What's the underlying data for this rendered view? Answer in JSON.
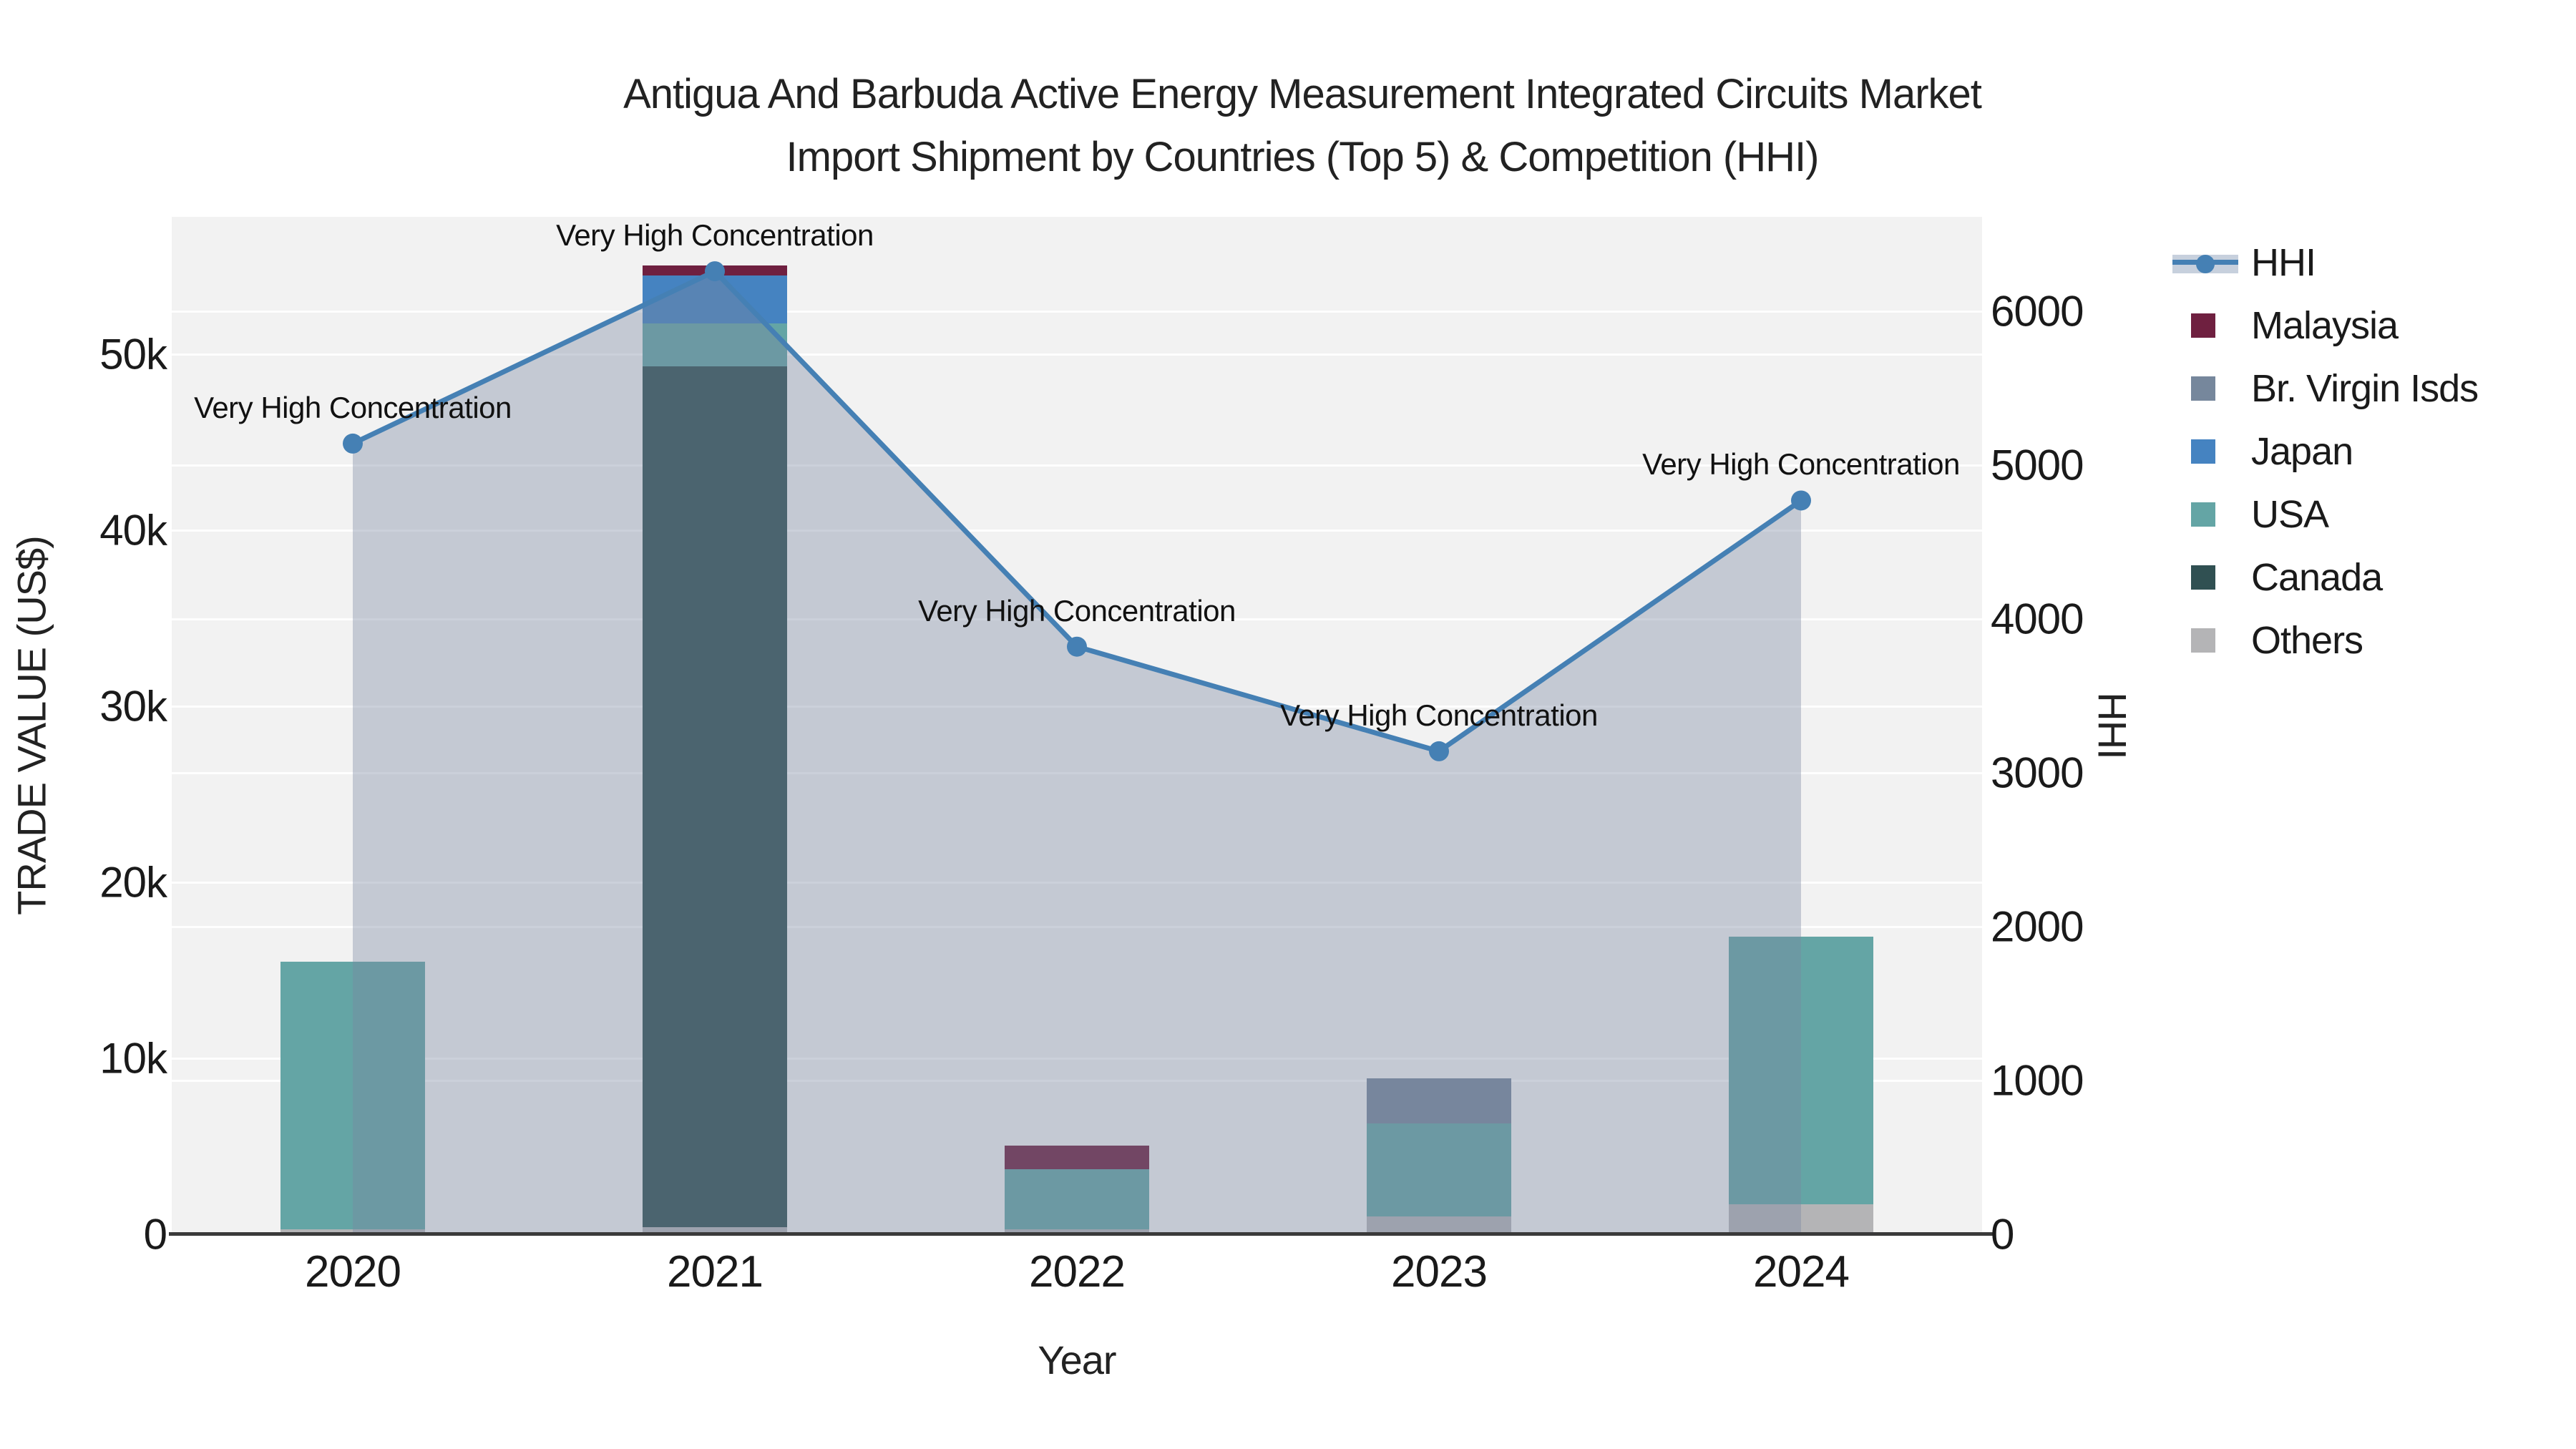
{
  "title": {
    "line1": "Antigua And Barbuda Active Energy Measurement Integrated Circuits Market",
    "line2": "Import Shipment by Countries (Top 5) & Competition (HHI)"
  },
  "chart_data": {
    "type": "bar+line",
    "categories": [
      "2020",
      "2021",
      "2022",
      "2023",
      "2024"
    ],
    "bar_stack_bottom_to_top": [
      "Others",
      "Canada",
      "USA",
      "Japan",
      "Br. Virgin Isds",
      "Malaysia"
    ],
    "series": [
      {
        "name": "Others",
        "color": "#b4b4b6",
        "values": [
          300,
          400,
          300,
          1000,
          1700
        ]
      },
      {
        "name": "Canada",
        "color": "#305052",
        "values": [
          0,
          48900,
          0,
          0,
          0
        ]
      },
      {
        "name": "USA",
        "color": "#64a5a5",
        "values": [
          15200,
          2450,
          3400,
          5300,
          15200
        ]
      },
      {
        "name": "Japan",
        "color": "#4583c1",
        "values": [
          0,
          2700,
          0,
          0,
          0
        ]
      },
      {
        "name": "Br. Virgin Isds",
        "color": "#76879c",
        "values": [
          0,
          0,
          0,
          2550,
          0
        ]
      },
      {
        "name": "Malaysia",
        "color": "#6f2040",
        "values": [
          0,
          570,
          1350,
          0,
          0
        ]
      }
    ],
    "line_series": {
      "name": "HHI",
      "color": "#4580b4",
      "area_fill": "rgba(120,135,160,0.38)",
      "values": [
        5140,
        6260,
        3820,
        3140,
        4770
      ]
    },
    "annotations": {
      "text": "Very High Concentration",
      "applies_to_years": [
        "2020",
        "2021",
        "2022",
        "2023",
        "2024"
      ]
    },
    "xlabel": "Year",
    "y_left": {
      "title": "TRADE VALUE (US$)",
      "max": 57800,
      "ticks": [
        {
          "value": 0,
          "label": "0"
        },
        {
          "value": 10000,
          "label": "10k"
        },
        {
          "value": 20000,
          "label": "20k"
        },
        {
          "value": 30000,
          "label": "30k"
        },
        {
          "value": 40000,
          "label": "40k"
        },
        {
          "value": 50000,
          "label": "50k"
        }
      ]
    },
    "y_right": {
      "title": "HHI",
      "max": 6614,
      "ticks": [
        {
          "value": 0,
          "label": "0"
        },
        {
          "value": 1000,
          "label": "1000"
        },
        {
          "value": 2000,
          "label": "2000"
        },
        {
          "value": 3000,
          "label": "3000"
        },
        {
          "value": 4000,
          "label": "4000"
        },
        {
          "value": 5000,
          "label": "5000"
        },
        {
          "value": 6000,
          "label": "6000"
        }
      ]
    },
    "legend": [
      {
        "label": "HHI",
        "type": "line",
        "color": "#4580b4"
      },
      {
        "label": "Malaysia",
        "type": "swatch",
        "color": "#6f2040"
      },
      {
        "label": "Br. Virgin Isds",
        "type": "swatch",
        "color": "#76879c"
      },
      {
        "label": "Japan",
        "type": "swatch",
        "color": "#4583c1"
      },
      {
        "label": "USA",
        "type": "swatch",
        "color": "#64a5a5"
      },
      {
        "label": "Canada",
        "type": "swatch",
        "color": "#305052"
      },
      {
        "label": "Others",
        "type": "swatch",
        "color": "#b4b4b6"
      }
    ],
    "grid": true,
    "legend_position": "right"
  }
}
